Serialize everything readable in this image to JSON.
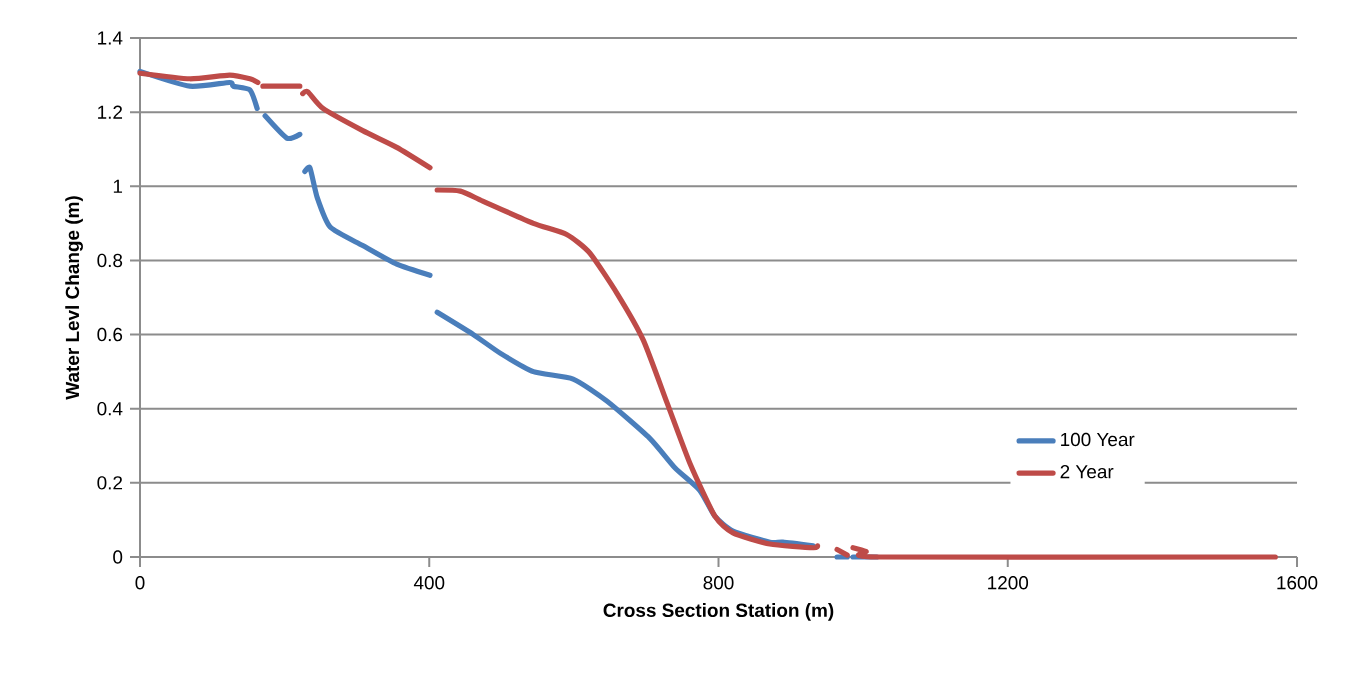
{
  "chart_data": {
    "type": "line",
    "xlabel": "Cross Section Station (m)",
    "ylabel": "Water Levl Change (m)",
    "xlim": [
      0,
      1600
    ],
    "xticks": [
      0,
      400,
      800,
      1200,
      1600
    ],
    "ylim": [
      0,
      1.4
    ],
    "yticks": [
      0,
      0.2,
      0.4,
      0.6,
      0.8,
      1,
      1.2,
      1.4
    ],
    "grid": "y",
    "legend": "right",
    "marker": "none",
    "line_style": "solid",
    "series": [
      {
        "name": "100 Year",
        "color": "#4a7ebb",
        "x": [
          0,
          69,
          124,
          129,
          152,
          162,
          168,
          173,
          203,
          221,
          225,
          228,
          235,
          245,
          263,
          308,
          355,
          401,
          405,
          411,
          461,
          498,
          544,
          599,
          646,
          705,
          740,
          774,
          795,
          820,
          871,
          889,
          931,
          950,
          964,
          978,
          982,
          986,
          1019
        ],
        "values": [
          1.31,
          1.27,
          1.28,
          1.27,
          1.26,
          1.21,
          null,
          1.19,
          1.13,
          1.14,
          null,
          1.04,
          1.05,
          0.97,
          0.89,
          0.84,
          0.79,
          0.76,
          null,
          0.66,
          0.6,
          0.55,
          0.5,
          0.48,
          0.42,
          0.32,
          0.24,
          0.18,
          0.11,
          0.07,
          0.04,
          0.04,
          0.03,
          null,
          0,
          0,
          null,
          0,
          0
        ]
      },
      {
        "name": "2 Year",
        "color": "#be4b48",
        "x": [
          0,
          69,
          124,
          152,
          163,
          166,
          170,
          221,
          223,
          225,
          232,
          253,
          308,
          355,
          401,
          405,
          411,
          443,
          474,
          544,
          590,
          622,
          660,
          696,
          729,
          761,
          795,
          820,
          871,
          931,
          937,
          950,
          964,
          978,
          982,
          986,
          1004,
          1023,
          1570
        ],
        "values": [
          1.305,
          1.29,
          1.3,
          1.29,
          1.28,
          null,
          1.27,
          1.27,
          null,
          1.25,
          1.255,
          1.21,
          1.15,
          1.105,
          1.05,
          null,
          0.99,
          0.987,
          0.96,
          0.9,
          0.87,
          0.82,
          0.71,
          0.585,
          0.415,
          0.25,
          0.11,
          0.065,
          0.035,
          0.025,
          0.03,
          null,
          0.02,
          0.005,
          null,
          0.025,
          0.015,
          0,
          0
        ]
      }
    ]
  }
}
